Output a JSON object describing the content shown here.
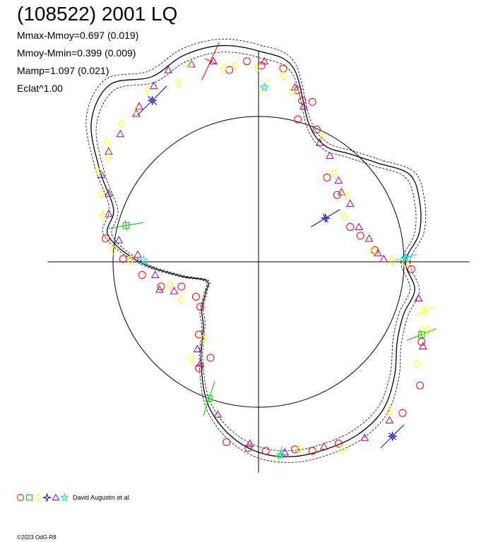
{
  "chart_data": {
    "type": "line",
    "title": "(108522) 2001 LQ",
    "stats": [
      "Mmax-Mmoy=0.697 (0.019)",
      "Mmoy-Mmin=0.399 (0.009)",
      "Mamp=1.097 (0.021)",
      "Eclat^1.00"
    ],
    "reference_circle_radius": 1.0,
    "xlim": [
      -1.45,
      1.45
    ],
    "ylim": [
      -1.45,
      1.45
    ],
    "grid": false,
    "legend_position": "bottom-left",
    "legend_text": "David Augustin et al.",
    "legend_symbols": [
      {
        "shape": "circle",
        "color": "#ff0000"
      },
      {
        "shape": "square",
        "color": "#00c000"
      },
      {
        "shape": "diamond",
        "color": "#ffff00"
      },
      {
        "shape": "star4",
        "color": "#0000c0"
      },
      {
        "shape": "triangle",
        "color": "#a000a0"
      },
      {
        "shape": "star",
        "color": "#00e0e0"
      }
    ],
    "curve_polar": {
      "angles_deg": [
        0,
        10,
        20,
        30,
        40,
        50,
        60,
        70,
        80,
        90,
        100,
        110,
        120,
        130,
        140,
        150,
        160,
        170,
        180,
        190,
        200,
        210,
        220,
        230,
        240,
        250,
        260,
        270,
        280,
        290,
        300,
        310,
        320,
        330,
        340,
        350
      ],
      "radii": [
        1.01,
        1.12,
        1.18,
        1.2,
        1.06,
        0.97,
        0.92,
        1.01,
        1.36,
        1.45,
        1.51,
        1.51,
        1.47,
        1.59,
        1.5,
        1.26,
        1.06,
        1.05,
        0.82,
        0.55,
        0.38,
        0.42,
        0.51,
        0.59,
        0.79,
        1.03,
        1.2,
        1.31,
        1.36,
        1.37,
        1.37,
        1.33,
        1.22,
        1.1,
        1.06,
        1.09
      ]
    },
    "series": [
      {
        "shape": "circle",
        "color": "#ff0000",
        "points": [
          [
            1.05,
            -0.05
          ],
          [
            1.12,
            -0.55
          ],
          [
            1.11,
            -0.85
          ],
          [
            0.99,
            -1.04
          ],
          [
            0.55,
            -1.25
          ],
          [
            0.37,
            -1.3
          ],
          [
            0.25,
            -1.29
          ],
          [
            0.05,
            -1.3
          ],
          [
            -0.07,
            -1.28
          ],
          [
            -0.22,
            -1.24
          ],
          [
            -0.41,
            -0.73
          ],
          [
            -0.33,
            -0.66
          ],
          [
            -0.41,
            -0.5
          ],
          [
            -0.4,
            -0.31
          ],
          [
            -0.43,
            -0.24
          ],
          [
            -0.53,
            -0.17
          ],
          [
            -0.67,
            -0.17
          ],
          [
            -0.8,
            -0.09
          ],
          [
            -0.93,
            0.02
          ],
          [
            -1.05,
            0.16
          ],
          [
            -0.2,
            1.32
          ],
          [
            -0.08,
            1.38
          ],
          [
            0.02,
            1.35
          ],
          [
            0.17,
            1.33
          ],
          [
            0.27,
            1.18
          ],
          [
            0.37,
            1.1
          ],
          [
            0.3,
            1.11
          ],
          [
            0.27,
            0.98
          ],
          [
            0.4,
            0.91
          ],
          [
            0.47,
            0.58
          ],
          [
            0.54,
            0.46
          ],
          [
            0.63,
            0.24
          ],
          [
            0.7,
            0.18
          ],
          [
            0.8,
            0.08
          ]
        ]
      },
      {
        "shape": "triangle",
        "color": "#a000a0",
        "points": [
          [
            1.13,
            -0.58
          ],
          [
            1.1,
            -0.25
          ],
          [
            0.9,
            -1.09
          ],
          [
            0.73,
            -1.21
          ],
          [
            0.45,
            -1.27
          ],
          [
            0.18,
            -1.31
          ],
          [
            -0.06,
            -1.25
          ],
          [
            -0.28,
            -1.05
          ],
          [
            -0.4,
            -0.7
          ],
          [
            -0.42,
            -0.6
          ],
          [
            -0.58,
            -0.2
          ],
          [
            -0.68,
            -0.19
          ],
          [
            -0.71,
            -0.09
          ],
          [
            -0.83,
            0.05
          ],
          [
            -0.96,
            0.15
          ],
          [
            -1.03,
            0.33
          ],
          [
            -1.03,
            0.47
          ],
          [
            -1.08,
            0.6
          ],
          [
            -1.03,
            0.76
          ],
          [
            -0.95,
            0.88
          ],
          [
            -0.84,
            1.02
          ],
          [
            -0.82,
            1.07
          ],
          [
            -0.72,
            1.21
          ],
          [
            -0.62,
            1.32
          ],
          [
            -0.46,
            1.36
          ],
          [
            -0.31,
            1.38
          ],
          [
            0.04,
            1.38
          ],
          [
            0.25,
            1.2
          ],
          [
            0.31,
            1.07
          ],
          [
            0.42,
            0.82
          ],
          [
            0.49,
            0.73
          ],
          [
            0.55,
            0.56
          ],
          [
            0.57,
            0.48
          ],
          [
            0.63,
            0.4
          ],
          [
            0.69,
            0.24
          ],
          [
            0.76,
            0.16
          ],
          [
            0.82,
            0.06
          ],
          [
            0.86,
            0.02
          ]
        ]
      },
      {
        "shape": "diamond",
        "color": "#ffff00",
        "points": [
          [
            1.14,
            -0.34
          ],
          [
            1.13,
            -0.47
          ],
          [
            1.17,
            -0.47
          ],
          [
            1.09,
            -0.7
          ],
          [
            0.9,
            -1.03
          ],
          [
            0.57,
            -1.29
          ],
          [
            0.28,
            -1.29
          ],
          [
            0.14,
            -1.34
          ],
          [
            -0.46,
            -0.67
          ],
          [
            -0.38,
            -0.53
          ],
          [
            -0.53,
            -0.26
          ],
          [
            -0.61,
            -0.16
          ],
          [
            -0.88,
            0.01
          ],
          [
            -1.0,
            0.08
          ],
          [
            -1.07,
            0.32
          ],
          [
            -1.08,
            0.47
          ],
          [
            -1.1,
            0.62
          ],
          [
            -1.03,
            0.72
          ],
          [
            -1.04,
            0.82
          ],
          [
            -0.94,
            0.95
          ],
          [
            -0.84,
            1.04
          ],
          [
            -0.76,
            1.18
          ],
          [
            -0.55,
            1.23
          ],
          [
            -0.47,
            1.36
          ],
          [
            -0.24,
            1.33
          ],
          [
            -0.16,
            1.35
          ],
          [
            -0.01,
            1.33
          ],
          [
            0.17,
            1.28
          ],
          [
            0.23,
            1.17
          ],
          [
            0.44,
            0.86
          ],
          [
            0.52,
            0.61
          ],
          [
            0.6,
            0.46
          ],
          [
            0.59,
            0.31
          ],
          [
            0.79,
            0.07
          ],
          [
            0.92,
            0.01
          ],
          [
            1.01,
            -0.01
          ]
        ]
      },
      {
        "shape": "square",
        "color": "#00c000",
        "points": [
          [
            -0.91,
            0.25
          ],
          [
            1.12,
            -0.5
          ],
          [
            -0.34,
            -0.94
          ]
        ]
      },
      {
        "shape": "star4",
        "color": "#0000c0",
        "points": [
          [
            -0.73,
            1.11
          ],
          [
            0.46,
            0.3
          ],
          [
            0.92,
            -1.2
          ]
        ]
      },
      {
        "shape": "star",
        "color": "#00e0e0",
        "points": [
          [
            0.04,
            1.2
          ],
          [
            1.01,
            0.03
          ],
          [
            -0.79,
            0.01
          ],
          [
            0.15,
            -1.33
          ]
        ]
      }
    ],
    "error_bars": [
      {
        "color": "#ff0000",
        "point": [
          -0.33,
          1.38
        ],
        "dx": 0.06,
        "dy": 0.13
      },
      {
        "color": "#0000c0",
        "point": [
          -0.73,
          1.11
        ],
        "dx": 0.1,
        "dy": 0.1
      },
      {
        "color": "#00c000",
        "point": [
          -0.91,
          0.25
        ],
        "dx": 0.12,
        "dy": 0.02
      },
      {
        "color": "#0000c0",
        "point": [
          0.46,
          0.3
        ],
        "dx": 0.1,
        "dy": 0.06
      },
      {
        "color": "#00e0e0",
        "point": [
          1.01,
          0.03
        ],
        "dx": 0.08,
        "dy": 0.02
      },
      {
        "color": "#ffff00",
        "point": [
          1.14,
          -0.34
        ],
        "dx": 0.07,
        "dy": 0.03
      },
      {
        "color": "#00c000",
        "point": [
          1.12,
          -0.5
        ],
        "dx": 0.1,
        "dy": 0.04
      },
      {
        "color": "#00c000",
        "point": [
          -0.34,
          -0.94
        ],
        "dx": 0.04,
        "dy": 0.12
      },
      {
        "color": "#0000c0",
        "point": [
          0.92,
          -1.2
        ],
        "dx": 0.08,
        "dy": 0.08
      },
      {
        "color": "#00e0e0",
        "point": [
          0.15,
          -1.33
        ],
        "dx": 0.01,
        "dy": 0.06
      },
      {
        "color": "#ffff00",
        "point": [
          0.04,
          1.2
        ],
        "dx": 0.03,
        "dy": 0.06
      }
    ]
  },
  "copyright": "©2023 OdG-R8"
}
